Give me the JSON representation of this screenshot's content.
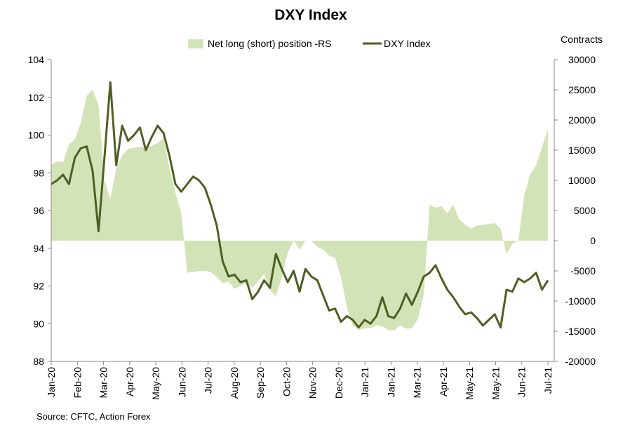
{
  "chart_data": {
    "type": "line",
    "title": "DXY Index",
    "source": "Source: CFTC, Action Forex",
    "y2_label": "Contracts",
    "legend_position": "top",
    "grid": false,
    "colors": {
      "area": "#d3e3b8",
      "line": "#4e5f22"
    },
    "y_left": {
      "min": 88,
      "max": 104,
      "ticks": [
        "88",
        "90",
        "92",
        "94",
        "96",
        "98",
        "100",
        "102",
        "104"
      ]
    },
    "y_right": {
      "min": -20000,
      "max": 30000,
      "ticks": [
        "-20000",
        "-15000",
        "-10000",
        "-5000",
        "0",
        "5000",
        "10000",
        "15000",
        "20000",
        "25000",
        "30000"
      ]
    },
    "x_tick_labels": [
      "Jan-20",
      "Feb-20",
      "Mar-20",
      "Apr-20",
      "May-20",
      "Jun-20",
      "Jul-20",
      "Aug-20",
      "Sep-20",
      "Oct-20",
      "Nov-20",
      "Dec-20",
      "Jan-21",
      "Jan-21",
      "Mar-21",
      "Apr-21",
      "May-21",
      "May-21",
      "Jun-21",
      "Jul-21"
    ],
    "series": [
      {
        "name": "Net long (short) position -RS",
        "kind": "area",
        "axis": "right",
        "values": [
          12500,
          13200,
          13000,
          16000,
          16800,
          19500,
          24000,
          25000,
          22500,
          10000,
          6900,
          12000,
          14100,
          15200,
          15400,
          15500,
          15600,
          15700,
          16200,
          17000,
          12000,
          8000,
          4500,
          -5300,
          -5200,
          -5000,
          -5000,
          -5200,
          -6000,
          -7000,
          -6800,
          -8000,
          -7500,
          -7000,
          -7800,
          -6700,
          -5500,
          -8200,
          -9200,
          -6000,
          -2000,
          0,
          -1500,
          0,
          0,
          -1000,
          -1500,
          -2500,
          -2800,
          -6000,
          -11000,
          -14000,
          -14800,
          -14500,
          -14500,
          -14000,
          -14200,
          -14800,
          -14900,
          -14000,
          -14600,
          -14500,
          -13000,
          -9000,
          6000,
          5500,
          5700,
          4500,
          6000,
          3500,
          2700,
          2000,
          2500,
          2600,
          2800,
          2900,
          2000,
          -2200,
          -500,
          0,
          7500,
          11000,
          12500,
          15500,
          18500
        ]
      },
      {
        "name": "DXY Index",
        "kind": "line",
        "axis": "left",
        "values": [
          97.4,
          97.6,
          97.9,
          97.4,
          98.8,
          99.3,
          99.4,
          98.1,
          94.9,
          98.8,
          102.8,
          98.4,
          100.5,
          99.7,
          100.0,
          100.4,
          99.2,
          99.9,
          100.5,
          100.1,
          98.9,
          97.4,
          97.0,
          97.4,
          97.8,
          97.6,
          97.2,
          96.3,
          95.2,
          93.3,
          92.5,
          92.6,
          92.2,
          92.3,
          91.3,
          91.7,
          92.3,
          91.9,
          93.7,
          92.9,
          92.2,
          92.8,
          91.7,
          92.9,
          92.5,
          92.3,
          91.5,
          90.7,
          90.8,
          90.1,
          90.4,
          90.2,
          89.8,
          90.2,
          90.0,
          90.4,
          91.4,
          90.4,
          90.3,
          90.8,
          91.6,
          91.0,
          91.7,
          92.5,
          92.7,
          93.1,
          92.4,
          91.8,
          91.4,
          90.9,
          90.5,
          90.6,
          90.3,
          89.9,
          90.2,
          90.5,
          89.8,
          91.8,
          91.7,
          92.4,
          92.2,
          92.4,
          92.7,
          91.8,
          92.3
        ]
      }
    ]
  }
}
